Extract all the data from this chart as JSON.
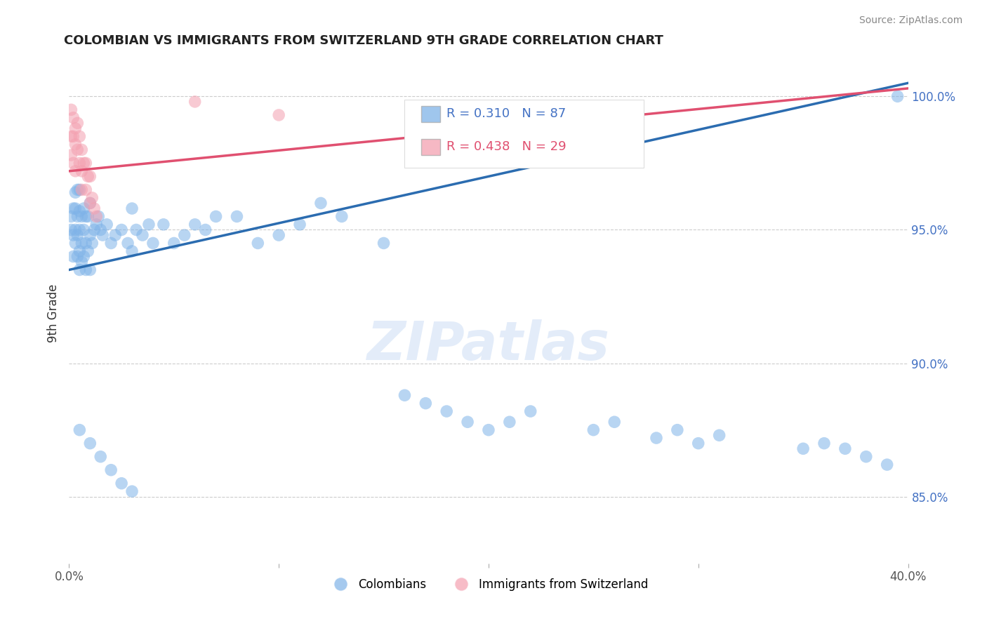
{
  "title": "COLOMBIAN VS IMMIGRANTS FROM SWITZERLAND 9TH GRADE CORRELATION CHART",
  "source": "Source: ZipAtlas.com",
  "ylabel": "9th Grade",
  "xlim": [
    0.0,
    0.4
  ],
  "ylim": [
    0.825,
    1.015
  ],
  "x_ticks": [
    0.0,
    0.1,
    0.2,
    0.3,
    0.4
  ],
  "x_tick_labels": [
    "0.0%",
    "",
    "",
    "",
    "40.0%"
  ],
  "y_ticks": [
    0.85,
    0.9,
    0.95,
    1.0
  ],
  "y_tick_labels": [
    "85.0%",
    "90.0%",
    "95.0%",
    "100.0%"
  ],
  "blue_R": 0.31,
  "blue_N": 87,
  "pink_R": 0.438,
  "pink_N": 29,
  "blue_color": "#7FB3E8",
  "pink_color": "#F4A0B0",
  "blue_line_color": "#2B6CB0",
  "pink_line_color": "#E05070",
  "legend_blue_label": "Colombians",
  "legend_pink_label": "Immigrants from Switzerland",
  "watermark": "ZIPatlas",
  "blue_line_x0": 0.0,
  "blue_line_y0": 0.935,
  "blue_line_x1": 0.4,
  "blue_line_y1": 1.005,
  "pink_line_x0": 0.0,
  "pink_line_y0": 0.972,
  "pink_line_x1": 0.4,
  "pink_line_y1": 1.003,
  "blue_x": [
    0.001,
    0.001,
    0.002,
    0.002,
    0.002,
    0.003,
    0.003,
    0.003,
    0.003,
    0.004,
    0.004,
    0.004,
    0.004,
    0.005,
    0.005,
    0.005,
    0.005,
    0.005,
    0.006,
    0.006,
    0.006,
    0.007,
    0.007,
    0.007,
    0.008,
    0.008,
    0.008,
    0.009,
    0.009,
    0.01,
    0.01,
    0.01,
    0.011,
    0.012,
    0.013,
    0.014,
    0.015,
    0.016,
    0.018,
    0.02,
    0.022,
    0.025,
    0.028,
    0.03,
    0.03,
    0.032,
    0.035,
    0.038,
    0.04,
    0.045,
    0.05,
    0.055,
    0.06,
    0.065,
    0.07,
    0.08,
    0.09,
    0.1,
    0.11,
    0.12,
    0.13,
    0.15,
    0.16,
    0.17,
    0.18,
    0.19,
    0.2,
    0.21,
    0.22,
    0.25,
    0.26,
    0.28,
    0.29,
    0.3,
    0.31,
    0.35,
    0.36,
    0.37,
    0.38,
    0.39,
    0.395,
    0.005,
    0.01,
    0.015,
    0.02,
    0.025,
    0.03
  ],
  "blue_y": [
    0.95,
    0.955,
    0.94,
    0.948,
    0.958,
    0.945,
    0.95,
    0.958,
    0.964,
    0.94,
    0.948,
    0.955,
    0.965,
    0.935,
    0.942,
    0.95,
    0.957,
    0.965,
    0.938,
    0.945,
    0.955,
    0.94,
    0.95,
    0.958,
    0.935,
    0.945,
    0.955,
    0.942,
    0.955,
    0.935,
    0.948,
    0.96,
    0.945,
    0.95,
    0.952,
    0.955,
    0.95,
    0.948,
    0.952,
    0.945,
    0.948,
    0.95,
    0.945,
    0.942,
    0.958,
    0.95,
    0.948,
    0.952,
    0.945,
    0.952,
    0.945,
    0.948,
    0.952,
    0.95,
    0.955,
    0.955,
    0.945,
    0.948,
    0.952,
    0.96,
    0.955,
    0.945,
    0.888,
    0.885,
    0.882,
    0.878,
    0.875,
    0.878,
    0.882,
    0.875,
    0.878,
    0.872,
    0.875,
    0.87,
    0.873,
    0.868,
    0.87,
    0.868,
    0.865,
    0.862,
    1.0,
    0.875,
    0.87,
    0.865,
    0.86,
    0.855,
    0.852
  ],
  "pink_x": [
    0.001,
    0.001,
    0.001,
    0.002,
    0.002,
    0.002,
    0.003,
    0.003,
    0.003,
    0.004,
    0.004,
    0.005,
    0.005,
    0.006,
    0.006,
    0.006,
    0.007,
    0.008,
    0.008,
    0.009,
    0.01,
    0.01,
    0.011,
    0.012,
    0.013,
    0.06,
    0.1,
    0.23,
    0.25
  ],
  "pink_y": [
    0.995,
    0.985,
    0.978,
    0.992,
    0.985,
    0.975,
    0.988,
    0.982,
    0.972,
    0.99,
    0.98,
    0.985,
    0.975,
    0.98,
    0.972,
    0.965,
    0.975,
    0.975,
    0.965,
    0.97,
    0.97,
    0.96,
    0.962,
    0.958,
    0.955,
    0.998,
    0.993,
    0.993,
    0.993
  ]
}
